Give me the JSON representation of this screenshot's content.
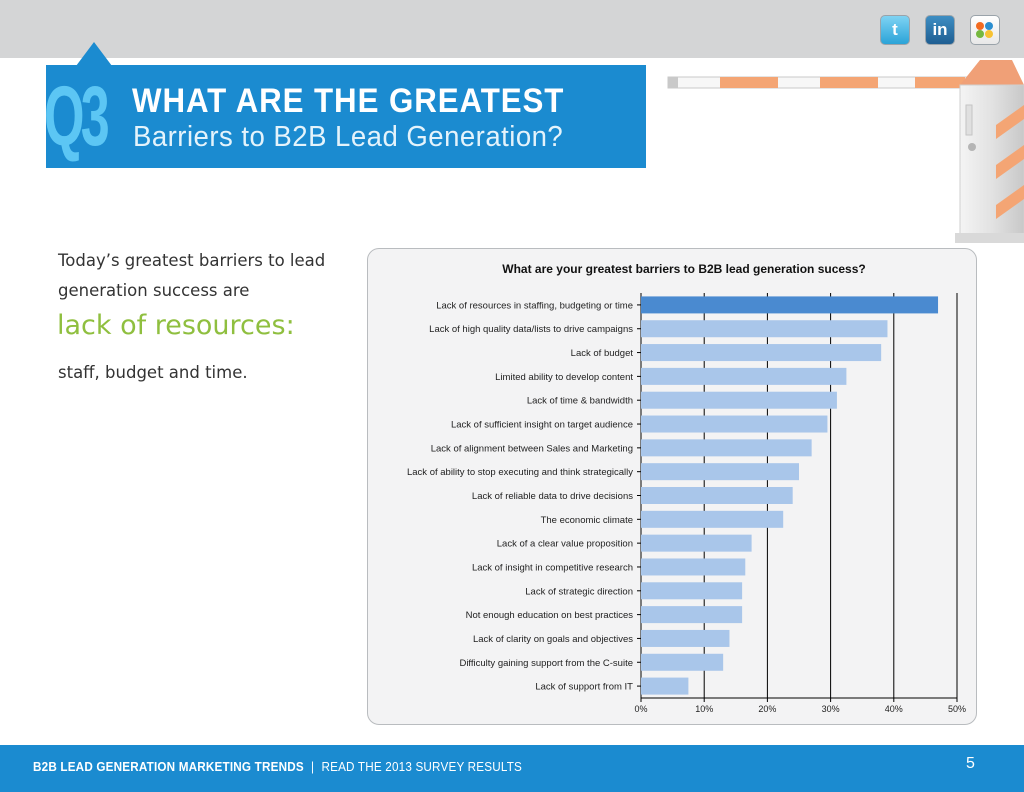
{
  "header": {
    "number": "Q3",
    "title": "WHAT ARE THE GREATEST",
    "subtitle": "Barriers to B2B Lead Generation?"
  },
  "social": {
    "twitter": "t",
    "linkedin": "in",
    "stumbleupon": "su"
  },
  "intro": {
    "line1": "Today’s greatest barriers to lead generation success are",
    "highlight": "lack of resources:",
    "line2": "staff, budget and time."
  },
  "colors": {
    "brand_blue": "#1b8bd0",
    "highlight_green": "#8fbf3f",
    "bar_top": "#4a8ad0",
    "bar_default": "#a9c6ea"
  },
  "chart_data": {
    "type": "bar",
    "orientation": "horizontal",
    "title": "What are your greatest barriers to B2B lead generation sucess?",
    "categories": [
      "Lack of resources in staffing, budgeting or time",
      "Lack of high quality data/lists to drive campaigns",
      "Lack of budget",
      "Limited ability to develop content",
      "Lack of time & bandwidth",
      "Lack of sufficient insight on target audience",
      "Lack of alignment between Sales and Marketing",
      "Lack of ability to stop executing and think strategically",
      "Lack of reliable data to drive decisions",
      "The economic climate",
      "Lack of a clear value proposition",
      "Lack of insight in competitive research",
      "Lack of strategic direction",
      "Not enough education on best practices",
      "Lack of clarity on goals and objectives",
      "Difficulty gaining support from the C-suite",
      "Lack of support from IT"
    ],
    "values": [
      47,
      39,
      38,
      32.5,
      31,
      29.5,
      27,
      25,
      24,
      22.5,
      17.5,
      16.5,
      16,
      16,
      14,
      13,
      7.5
    ],
    "xlim": [
      0,
      50
    ],
    "xticks": [
      "0%",
      "10%",
      "20%",
      "30%",
      "40%",
      "50%"
    ],
    "grid": true,
    "highlight_index": 0
  },
  "footer": {
    "title": "B2B LEAD GENERATION MARKETING TRENDS",
    "separator": "|",
    "cta": "READ THE 2013 SURVEY RESULTS",
    "page_number": "5"
  }
}
